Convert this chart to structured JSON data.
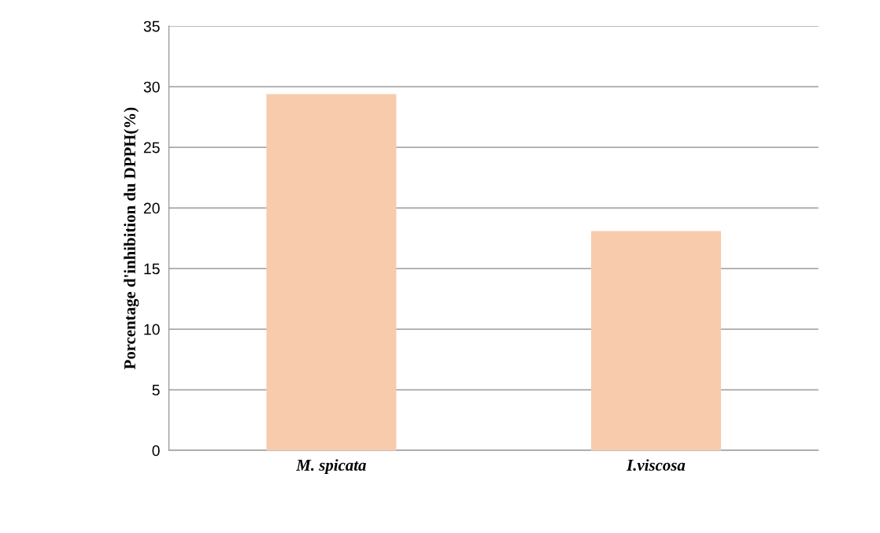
{
  "chart_data": {
    "type": "bar",
    "ylabel": "Porcentage d'inhibition du DPPH(%)",
    "categories": [
      "M. spicata",
      "I.viscosa"
    ],
    "values": [
      29.4,
      18.1
    ],
    "color": "#f8cbad",
    "ylim": [
      0,
      35
    ],
    "yticks": [
      0,
      5,
      10,
      15,
      20,
      25,
      30,
      35
    ],
    "grid": "y"
  }
}
